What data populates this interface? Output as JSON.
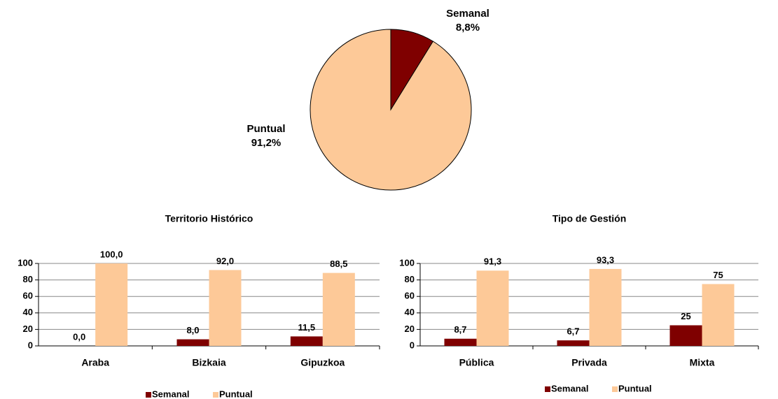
{
  "chart_data": [
    {
      "type": "pie",
      "categories": [
        "Semanal",
        "Puntual"
      ],
      "values": [
        8.8,
        91.2
      ],
      "value_labels": [
        "8,8%",
        "91,2%"
      ],
      "colors": [
        "#7f0000",
        "#fdc998"
      ]
    },
    {
      "type": "bar",
      "title": "Territorio Histórico",
      "categories": [
        "Araba",
        "Bizkaia",
        "Gipuzkoa"
      ],
      "series": [
        {
          "name": "Semanal",
          "color": "#7f0000",
          "values": [
            0,
            8,
            11.5
          ],
          "value_labels": [
            "0,0",
            "8,0",
            "11,5"
          ]
        },
        {
          "name": "Puntual",
          "color": "#fdc998",
          "values": [
            100,
            92,
            88.5
          ],
          "value_labels": [
            "100,0",
            "92,0",
            "88,5"
          ]
        }
      ],
      "ylim": [
        0,
        100
      ],
      "yticks": [
        0,
        20,
        40,
        60,
        80,
        100
      ],
      "grid": true,
      "legend": "bottom"
    },
    {
      "type": "bar",
      "title": "Tipo de Gestión",
      "categories": [
        "Pública",
        "Privada",
        "Mixta"
      ],
      "series": [
        {
          "name": "Semanal",
          "color": "#7f0000",
          "values": [
            8.7,
            6.7,
            25
          ],
          "value_labels": [
            "8,7",
            "6,7",
            "25"
          ]
        },
        {
          "name": "Puntual",
          "color": "#fdc998",
          "values": [
            91.3,
            93.3,
            75
          ],
          "value_labels": [
            "91,3",
            "93,3",
            "75"
          ]
        }
      ],
      "ylim": [
        0,
        100
      ],
      "yticks": [
        0,
        20,
        40,
        60,
        80,
        100
      ],
      "grid": true,
      "legend": "bottom"
    }
  ]
}
